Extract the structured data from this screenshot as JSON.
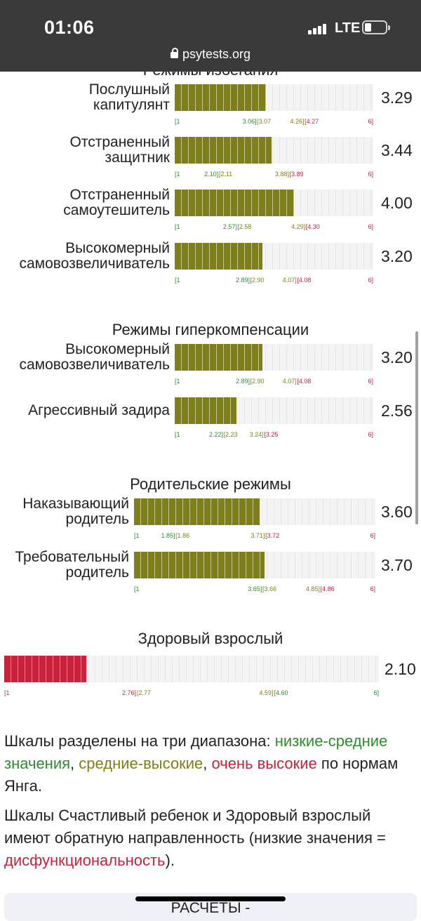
{
  "status_bar": {
    "time": "01:06",
    "network": "LTE",
    "battery_icon": "battery-icon",
    "signal_icon": "signal-icon"
  },
  "browser": {
    "url": "psytests.org",
    "lock_icon": "lock-icon"
  },
  "colors": {
    "olive": "#7f7f1a",
    "red": "#c8223d",
    "green": "#2e8b2e"
  },
  "sections": [
    {
      "title": "Режимы избегания"
    },
    {
      "title": "Режимы гиперкомпенсации"
    },
    {
      "title": "Родительские режимы"
    },
    {
      "title": "Здоровый взрослый"
    }
  ],
  "scales": [
    {
      "label": [
        "Послушный",
        "капитулянт"
      ],
      "score": "3.29",
      "value": 3.29,
      "color": "olive",
      "ticks": [
        {
          "text": "[1",
          "c": "g",
          "v": 1
        },
        {
          "text": "3.06]",
          "c": "g",
          "v": 3.06
        },
        {
          "text": "[3.07",
          "c": "o",
          "v": 3.07
        },
        {
          "text": "4.26]",
          "c": "o",
          "v": 4.26
        },
        {
          "text": "[4.27",
          "c": "r",
          "v": 4.27
        },
        {
          "text": "6]",
          "c": "r",
          "v": 6
        }
      ]
    },
    {
      "label": [
        "Отстраненный",
        "защитник"
      ],
      "score": "3.44",
      "value": 3.44,
      "color": "olive",
      "ticks": [
        {
          "text": "[1",
          "c": "g",
          "v": 1
        },
        {
          "text": "2.10]",
          "c": "g",
          "v": 2.1
        },
        {
          "text": "[2.11",
          "c": "o",
          "v": 2.11
        },
        {
          "text": "3.88]",
          "c": "o",
          "v": 3.88
        },
        {
          "text": "[3.89",
          "c": "r",
          "v": 3.89
        },
        {
          "text": "6]",
          "c": "r",
          "v": 6
        }
      ]
    },
    {
      "label": [
        "Отстраненный",
        "самоутешитель"
      ],
      "score": "4.00",
      "value": 4.0,
      "color": "olive",
      "ticks": [
        {
          "text": "[1",
          "c": "g",
          "v": 1
        },
        {
          "text": "2.57]",
          "c": "g",
          "v": 2.57
        },
        {
          "text": "[2.58",
          "c": "o",
          "v": 2.58
        },
        {
          "text": "4.29]",
          "c": "o",
          "v": 4.29
        },
        {
          "text": "[4.30",
          "c": "r",
          "v": 4.3
        },
        {
          "text": "6]",
          "c": "r",
          "v": 6
        }
      ]
    },
    {
      "label": [
        "Высокомерный",
        "самовозвеличиватель"
      ],
      "score": "3.20",
      "value": 3.2,
      "color": "olive",
      "ticks": [
        {
          "text": "[1",
          "c": "g",
          "v": 1
        },
        {
          "text": "2.89]",
          "c": "g",
          "v": 2.89
        },
        {
          "text": "[2.90",
          "c": "o",
          "v": 2.9
        },
        {
          "text": "4.07]",
          "c": "o",
          "v": 4.07
        },
        {
          "text": "[4.08",
          "c": "r",
          "v": 4.08
        },
        {
          "text": "6]",
          "c": "r",
          "v": 6
        }
      ]
    },
    {
      "label": [
        "Высокомерный",
        "самовозвеличиватель"
      ],
      "score": "3.20",
      "value": 3.2,
      "color": "olive",
      "ticks": [
        {
          "text": "[1",
          "c": "g",
          "v": 1
        },
        {
          "text": "2.89]",
          "c": "g",
          "v": 2.89
        },
        {
          "text": "[2.90",
          "c": "o",
          "v": 2.9
        },
        {
          "text": "4.07]",
          "c": "o",
          "v": 4.07
        },
        {
          "text": "[4.08",
          "c": "r",
          "v": 4.08
        },
        {
          "text": "6]",
          "c": "r",
          "v": 6
        }
      ]
    },
    {
      "label": [
        "Агрессивный задира"
      ],
      "score": "2.56",
      "value": 2.56,
      "color": "olive",
      "ticks": [
        {
          "text": "[1",
          "c": "g",
          "v": 1
        },
        {
          "text": "2.22]",
          "c": "g",
          "v": 2.22
        },
        {
          "text": "[2.23",
          "c": "o",
          "v": 2.23
        },
        {
          "text": "3.24]",
          "c": "o",
          "v": 3.24
        },
        {
          "text": "[3.25",
          "c": "r",
          "v": 3.25
        },
        {
          "text": "6]",
          "c": "r",
          "v": 6
        }
      ]
    },
    {
      "label": [
        "Наказывающий",
        "родитель"
      ],
      "score": "3.60",
      "value": 3.6,
      "color": "olive",
      "ticks": [
        {
          "text": "[1",
          "c": "g",
          "v": 1
        },
        {
          "text": "1.85]",
          "c": "g",
          "v": 1.85
        },
        {
          "text": "[1.86",
          "c": "o",
          "v": 1.86
        },
        {
          "text": "3.71]",
          "c": "o",
          "v": 3.71
        },
        {
          "text": "[3.72",
          "c": "r",
          "v": 3.72
        },
        {
          "text": "6]",
          "c": "r",
          "v": 6
        }
      ]
    },
    {
      "label": [
        "Требовательный",
        "родитель"
      ],
      "score": "3.70",
      "value": 3.7,
      "color": "olive",
      "ticks": [
        {
          "text": "[1",
          "c": "g",
          "v": 1
        },
        {
          "text": "3.65]",
          "c": "g",
          "v": 3.65
        },
        {
          "text": "[3.66",
          "c": "o",
          "v": 3.66
        },
        {
          "text": "4.85]",
          "c": "o",
          "v": 4.85
        },
        {
          "text": "[4.86",
          "c": "r",
          "v": 4.86
        },
        {
          "text": "6]",
          "c": "r",
          "v": 6
        }
      ]
    },
    {
      "label": [],
      "score": "2.10",
      "value": 2.1,
      "color": "red",
      "ticks": [
        {
          "text": "[1",
          "c": "r",
          "v": 1
        },
        {
          "text": "2.76]",
          "c": "r",
          "v": 2.76
        },
        {
          "text": "[2.77",
          "c": "o",
          "v": 2.77
        },
        {
          "text": "4.59]",
          "c": "o",
          "v": 4.59
        },
        {
          "text": "[4.60",
          "c": "g",
          "v": 4.6
        },
        {
          "text": "6]",
          "c": "g",
          "v": 6
        }
      ]
    }
  ],
  "legend_text": {
    "p1_a": "Шкалы разделены на три диапазона: ",
    "p1_low": "низкие-средние значения",
    "p1_sep1": ", ",
    "p1_mid": "средние-высокие",
    "p1_sep2": ", ",
    "p1_high": "очень высокие",
    "p1_b": " по нормам Янга.",
    "p2_a": "Шкалы Счастливый ребенок и Здоровый взрослый имеют обратную направленность (низкие значения = ",
    "p2_dys": "дисфункциональность",
    "p2_b": ")."
  },
  "next_card": {
    "title": "РАСЧЕТЫ -"
  }
}
